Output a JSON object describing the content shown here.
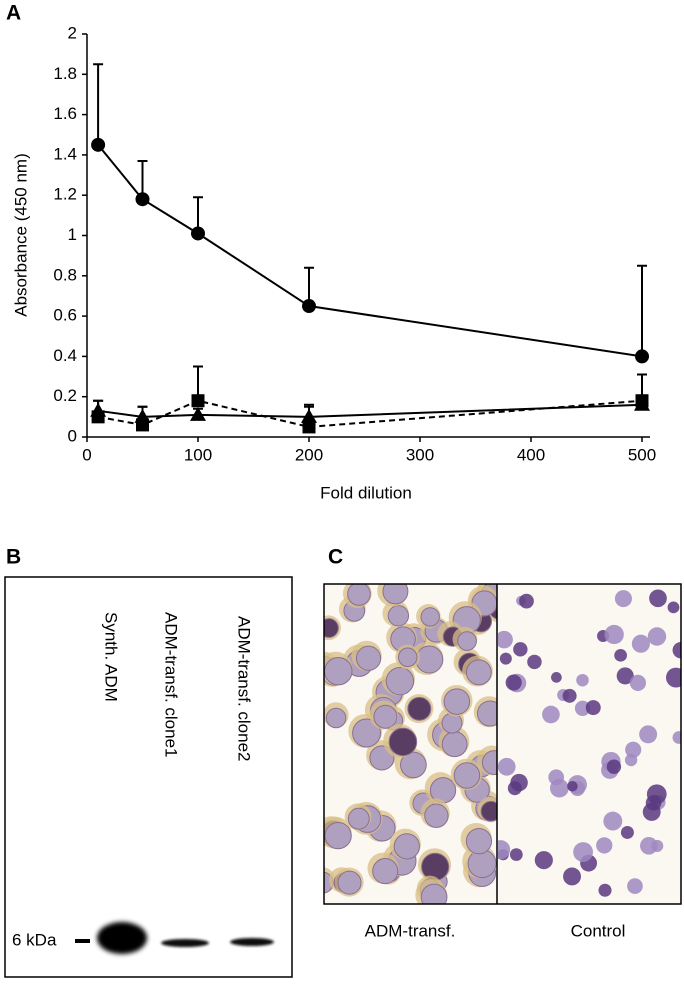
{
  "chart_data": {
    "type": "line",
    "panel_label": "A",
    "x_label": "Fold dilution",
    "y_label": "Absorbance (450 nm)",
    "x": [
      10,
      50,
      100,
      200,
      500
    ],
    "series": [
      {
        "color": "#000000",
        "marker": "circle",
        "dashed": false,
        "values": [
          1.45,
          1.18,
          1.01,
          0.65,
          0.4
        ],
        "errors": [
          0.4,
          0.19,
          0.18,
          0.19,
          0.45
        ]
      },
      {
        "color": "#000000",
        "marker": "triangle",
        "dashed": false,
        "values": [
          0.13,
          0.1,
          0.11,
          0.1,
          0.16
        ],
        "errors": [
          0.05,
          0.05,
          0.03,
          0.06,
          0.02
        ]
      },
      {
        "color": "#000000",
        "marker": "square",
        "dashed": true,
        "values": [
          0.1,
          0.06,
          0.18,
          0.05,
          0.18
        ],
        "errors": [
          0.08,
          0.09,
          0.17,
          0.1,
          0.13
        ]
      }
    ],
    "xlim": [
      0,
      500
    ],
    "xticks": [
      0,
      100,
      200,
      300,
      400,
      500
    ],
    "ylim": [
      0,
      2
    ],
    "yticks": [
      0,
      0.2,
      0.4,
      0.6,
      0.8,
      1,
      1.2,
      1.4,
      1.6,
      1.8,
      2
    ]
  },
  "panel_b": {
    "label": "B",
    "marker": "6 kDa",
    "lanes": [
      "Synth. ADM",
      "ADM-transf. clone1",
      "ADM-transf. clone2"
    ]
  },
  "panel_c": {
    "label": "C",
    "images": [
      "ADM-transf.",
      "Control"
    ]
  }
}
